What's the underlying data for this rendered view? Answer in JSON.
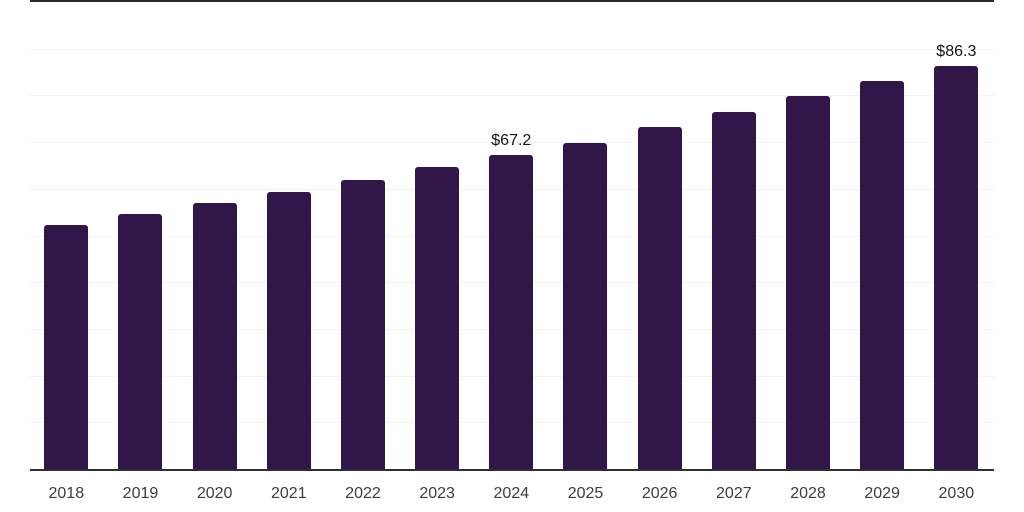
{
  "chart_data": {
    "type": "bar",
    "title": "",
    "xlabel": "",
    "ylabel": "",
    "categories": [
      "2018",
      "2019",
      "2020",
      "2021",
      "2022",
      "2023",
      "2024",
      "2025",
      "2026",
      "2027",
      "2028",
      "2029",
      "2030"
    ],
    "values": [
      52.3,
      54.6,
      57.0,
      59.4,
      61.9,
      64.6,
      67.2,
      69.9,
      73.3,
      76.4,
      79.8,
      83.1,
      86.3
    ],
    "data_labels": [
      "",
      "",
      "",
      "",
      "",
      "",
      "$67.2",
      "",
      "",
      "",
      "",
      "",
      "$86.3"
    ],
    "ylim": [
      0,
      100
    ],
    "gridline_step": 10,
    "grid": "horizontal",
    "y_tick_labels_visible": false,
    "legend_position": "none",
    "colors": {
      "bar": "#31164a",
      "axis_line": "#2e2e35",
      "top_rule": "#26262e",
      "gridline": "#f2f2f5",
      "value_label": "#141414",
      "tick_label": "#3d3d3d",
      "background": "#ffffff"
    }
  }
}
